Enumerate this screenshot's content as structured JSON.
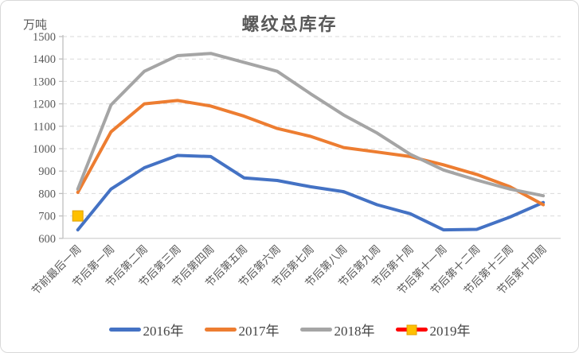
{
  "chart_data": {
    "type": "line",
    "title": "螺纹总库存",
    "ylabel": "万吨",
    "xlabel": "",
    "ylim": [
      600,
      1500
    ],
    "ytick_step": 100,
    "grid": true,
    "legend_position": "bottom",
    "categories": [
      "节前最后一周",
      "节后第一周",
      "节后第二周",
      "节后第三周",
      "节后第四周",
      "节后第五周",
      "节后第六周",
      "节后第七周",
      "节后第八周",
      "节后第九周",
      "节后第十周",
      "节后第十一周",
      "节后第十二周",
      "节后第十三周",
      "节后第十四周"
    ],
    "series": [
      {
        "name": "2016年",
        "color": "#4472C4",
        "style": "line",
        "values": [
          638,
          820,
          915,
          970,
          965,
          870,
          858,
          830,
          808,
          750,
          710,
          638,
          640,
          695,
          760
        ]
      },
      {
        "name": "2017年",
        "color": "#ED7D31",
        "style": "line",
        "values": [
          805,
          1075,
          1200,
          1215,
          1190,
          1145,
          1090,
          1055,
          1005,
          985,
          965,
          928,
          885,
          830,
          750
        ]
      },
      {
        "name": "2018年",
        "color": "#A5A5A5",
        "style": "line",
        "values": [
          820,
          1195,
          1345,
          1415,
          1425,
          1385,
          1345,
          1245,
          1150,
          1070,
          975,
          905,
          860,
          820,
          790
        ]
      },
      {
        "name": "2019年",
        "color": "#FF0000",
        "style": "line-with-square-marker",
        "marker_color": "#FFC000",
        "values": [
          700,
          null,
          null,
          null,
          null,
          null,
          null,
          null,
          null,
          null,
          null,
          null,
          null,
          null,
          null
        ]
      }
    ],
    "colors": {
      "gridline": "#d9d9d9",
      "axis": "#bfbfbf",
      "tick_text": "#595959",
      "title_text": "#595959"
    }
  }
}
